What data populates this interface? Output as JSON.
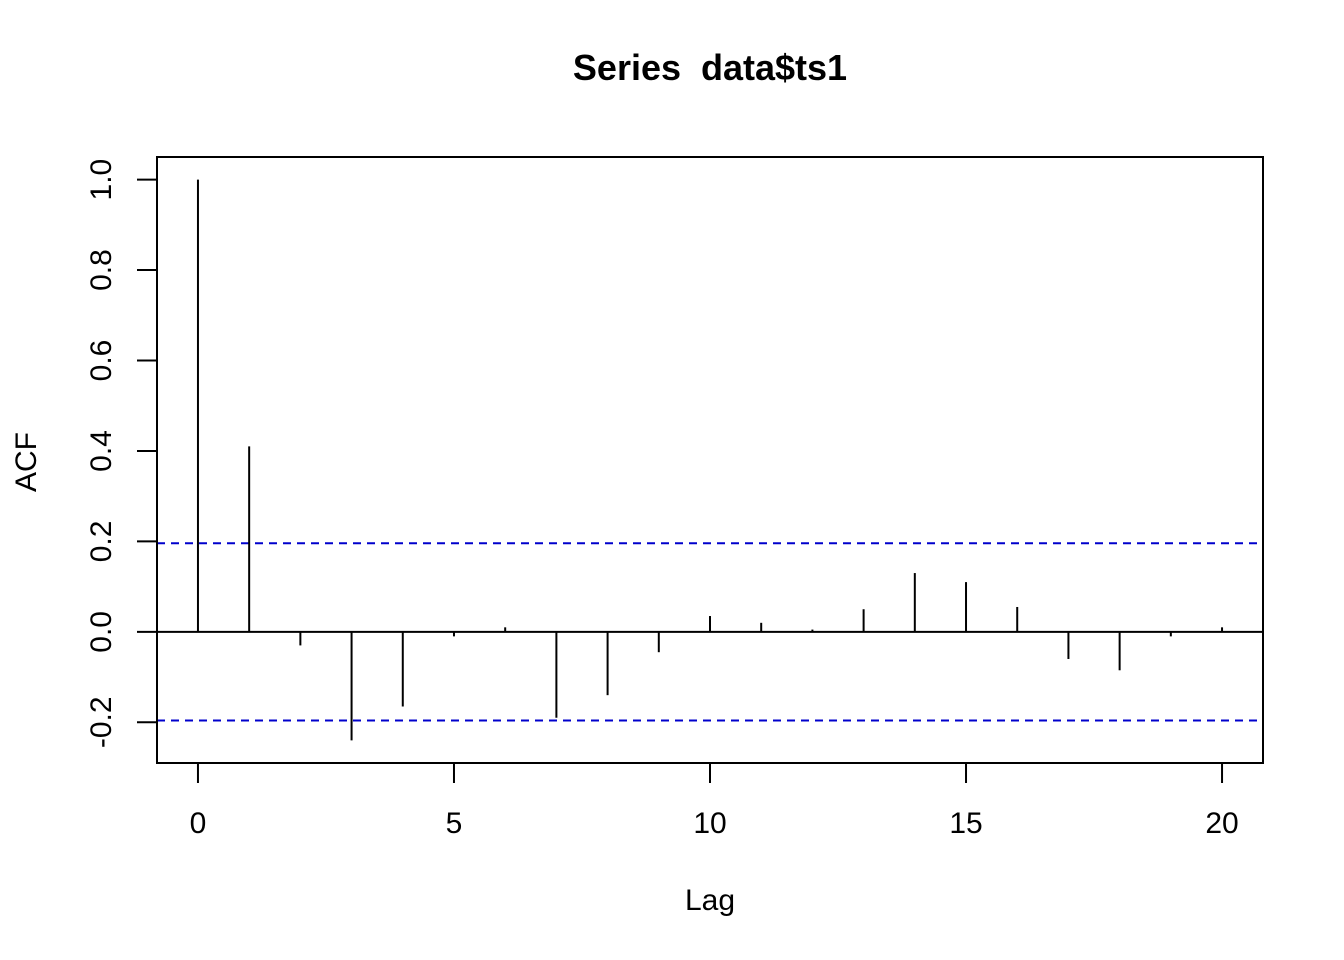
{
  "chart_data": {
    "type": "bar",
    "title": "Series  data$ts1",
    "xlabel": "Lag",
    "ylabel": "ACF",
    "x": [
      0,
      1,
      2,
      3,
      4,
      5,
      6,
      7,
      8,
      9,
      10,
      11,
      12,
      13,
      14,
      15,
      16,
      17,
      18,
      19,
      20
    ],
    "values": [
      1.0,
      0.41,
      -0.03,
      -0.24,
      -0.165,
      -0.01,
      0.01,
      -0.19,
      -0.14,
      -0.045,
      0.035,
      0.02,
      0.005,
      0.05,
      0.13,
      0.11,
      0.055,
      -0.06,
      -0.085,
      -0.01,
      0.01
    ],
    "xlim": [
      -0.8,
      20.8
    ],
    "ylim": [
      -0.29,
      1.05
    ],
    "x_ticks": [
      0,
      5,
      10,
      15,
      20
    ],
    "x_tick_labels": [
      "0",
      "5",
      "10",
      "15",
      "20"
    ],
    "y_ticks": [
      -0.2,
      0.0,
      0.2,
      0.4,
      0.6,
      0.8,
      1.0
    ],
    "y_tick_labels": [
      "-0.2",
      "0.0",
      "0.2",
      "0.4",
      "0.6",
      "0.8",
      "1.0"
    ],
    "confidence_bounds": [
      0.196,
      -0.196
    ],
    "zero_line": true,
    "grid": false,
    "colors": {
      "bars": "#000000",
      "confidence": "#0000cc",
      "axes": "#000000"
    }
  }
}
